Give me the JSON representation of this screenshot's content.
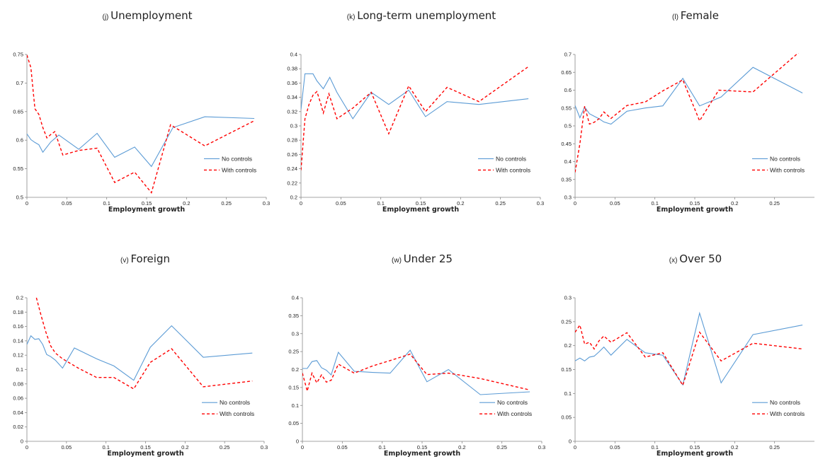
{
  "colors": {
    "no_controls": "#5b9bd5",
    "with_controls": "#ff0000",
    "axis": "#888888"
  },
  "chart_data": [
    {
      "type": "line",
      "panel": "(j)",
      "title": "Unemployment",
      "xlabel": "Employment growth",
      "ylabel": "",
      "xlim": [
        0,
        0.3
      ],
      "ylim": [
        0.5,
        0.75
      ],
      "xticks": [
        0,
        0.05,
        0.1,
        0.15,
        0.2,
        0.25,
        0.3
      ],
      "xtick_labels": [
        "0",
        "0.05",
        "0.1",
        "0.15",
        "0.2",
        "0.25",
        "0.3"
      ],
      "yticks": [
        0.5,
        0.55,
        0.6,
        0.65,
        0.7,
        0.75
      ],
      "ytick_labels": [
        "0.5",
        "0.55",
        "0.6",
        "0.65",
        "0.7",
        "0.75"
      ],
      "legend_placement": "right",
      "series": [
        {
          "name": "No controls",
          "x": [
            0,
            0.005,
            0.01,
            0.015,
            0.02,
            0.03,
            0.04,
            0.065,
            0.088,
            0.11,
            0.135,
            0.156,
            0.183,
            0.223,
            0.285
          ],
          "y": [
            0.611,
            0.601,
            0.596,
            0.592,
            0.579,
            0.597,
            0.609,
            0.584,
            0.612,
            0.57,
            0.588,
            0.554,
            0.622,
            0.641,
            0.638
          ]
        },
        {
          "name": "With controls",
          "x": [
            0,
            0.005,
            0.01,
            0.015,
            0.02,
            0.025,
            0.03,
            0.035,
            0.045,
            0.065,
            0.088,
            0.11,
            0.135,
            0.156,
            0.18,
            0.223,
            0.285
          ],
          "y": [
            0.749,
            0.727,
            0.655,
            0.645,
            0.622,
            0.604,
            0.61,
            0.615,
            0.574,
            0.582,
            0.586,
            0.526,
            0.544,
            0.508,
            0.627,
            0.59,
            0.634
          ]
        }
      ]
    },
    {
      "type": "line",
      "panel": "(k)",
      "title": "Long-term unemployment",
      "xlabel": "Employment growth",
      "ylabel": "",
      "xlim": [
        0,
        0.3
      ],
      "ylim": [
        0.2,
        0.4
      ],
      "xticks": [
        0,
        0.05,
        0.1,
        0.15,
        0.2,
        0.25,
        0.3
      ],
      "xtick_labels": [
        "0",
        "0.05",
        "0.1",
        "0.15",
        "0.2",
        "0.25",
        "0.3"
      ],
      "yticks": [
        0.2,
        0.22,
        0.24,
        0.26,
        0.28,
        0.3,
        0.32,
        0.34,
        0.36,
        0.38,
        0.4
      ],
      "ytick_labels": [
        "0.2",
        "0.22",
        "0.24",
        "0.26",
        "0.28",
        "0.3",
        "0.32",
        "0.34",
        "0.36",
        "0.38",
        "0.4"
      ],
      "legend_placement": "right",
      "series": [
        {
          "name": "No controls",
          "x": [
            0,
            0.005,
            0.01,
            0.015,
            0.02,
            0.028,
            0.036,
            0.045,
            0.065,
            0.088,
            0.11,
            0.135,
            0.156,
            0.183,
            0.223,
            0.285
          ],
          "y": [
            0.323,
            0.373,
            0.373,
            0.373,
            0.363,
            0.352,
            0.368,
            0.347,
            0.31,
            0.347,
            0.33,
            0.35,
            0.313,
            0.334,
            0.33,
            0.338
          ]
        },
        {
          "name": "With controls",
          "x": [
            0,
            0.005,
            0.01,
            0.015,
            0.02,
            0.025,
            0.028,
            0.035,
            0.045,
            0.065,
            0.088,
            0.11,
            0.135,
            0.156,
            0.183,
            0.223,
            0.285
          ],
          "y": [
            0.238,
            0.31,
            0.33,
            0.343,
            0.348,
            0.33,
            0.318,
            0.345,
            0.31,
            0.325,
            0.347,
            0.289,
            0.356,
            0.32,
            0.354,
            0.334,
            0.383
          ]
        }
      ]
    },
    {
      "type": "line",
      "panel": "(l)",
      "title": "Female",
      "xlabel": "Employment growth",
      "ylabel": "",
      "xlim": [
        0,
        0.3
      ],
      "ylim": [
        0.3,
        0.7
      ],
      "xticks": [
        0,
        0.05,
        0.1,
        0.15,
        0.2,
        0.25
      ],
      "xtick_labels": [
        "0",
        "0.05",
        "0.1",
        "0.15",
        "0.2",
        "0.25"
      ],
      "yticks": [
        0.3,
        0.35,
        0.4,
        0.45,
        0.5,
        0.55,
        0.6,
        0.65,
        0.7
      ],
      "ytick_labels": [
        "0.3",
        "0.35",
        "0.4",
        "0.45",
        "0.5",
        "0.55",
        "0.6",
        "0.65",
        "0.7"
      ],
      "legend_placement": "right",
      "series": [
        {
          "name": "No controls",
          "x": [
            0,
            0.006,
            0.012,
            0.018,
            0.024,
            0.03,
            0.036,
            0.045,
            0.065,
            0.088,
            0.11,
            0.135,
            0.156,
            0.183,
            0.223,
            0.285
          ],
          "y": [
            0.557,
            0.523,
            0.553,
            0.534,
            0.527,
            0.52,
            0.511,
            0.505,
            0.541,
            0.55,
            0.556,
            0.633,
            0.556,
            0.581,
            0.664,
            0.592
          ]
        },
        {
          "name": "With controls",
          "x": [
            0,
            0.006,
            0.012,
            0.018,
            0.024,
            0.03,
            0.036,
            0.045,
            0.065,
            0.088,
            0.11,
            0.135,
            0.156,
            0.18,
            0.223,
            0.28
          ],
          "y": [
            0.37,
            0.45,
            0.555,
            0.505,
            0.51,
            0.52,
            0.539,
            0.521,
            0.557,
            0.567,
            0.598,
            0.629,
            0.514,
            0.6,
            0.595,
            0.705
          ]
        }
      ]
    },
    {
      "type": "line",
      "panel": "(v)",
      "title": "Foreign",
      "xlabel": "Employment growth",
      "ylabel": "",
      "xlim": [
        0,
        0.3
      ],
      "ylim": [
        0,
        0.2
      ],
      "xticks": [
        0,
        0.05,
        0.1,
        0.15,
        0.2,
        0.25,
        0.3
      ],
      "xtick_labels": [
        "0",
        "0.05",
        "0.1",
        "0.15",
        "0.2",
        "0.25",
        "0.3"
      ],
      "yticks": [
        0,
        0.02,
        0.04,
        0.06,
        0.08,
        0.1,
        0.12,
        0.14,
        0.16,
        0.18,
        0.2
      ],
      "ytick_labels": [
        "0",
        "0.02",
        "0.04",
        "0.06",
        "0.08",
        "0.1",
        "0.12",
        "0.14",
        "0.16",
        "0.18",
        "0.2"
      ],
      "legend_placement": "right",
      "series": [
        {
          "name": "No controls",
          "x": [
            0,
            0.005,
            0.01,
            0.015,
            0.02,
            0.025,
            0.03,
            0.036,
            0.045,
            0.06,
            0.088,
            0.11,
            0.135,
            0.156,
            0.183,
            0.223,
            0.285
          ],
          "y": [
            0.135,
            0.147,
            0.142,
            0.143,
            0.135,
            0.121,
            0.118,
            0.113,
            0.102,
            0.13,
            0.115,
            0.105,
            0.085,
            0.131,
            0.161,
            0.117,
            0.123
          ]
        },
        {
          "name": "With controls",
          "x": [
            0.012,
            0.018,
            0.024,
            0.03,
            0.036,
            0.045,
            0.065,
            0.088,
            0.11,
            0.135,
            0.156,
            0.183,
            0.223,
            0.285
          ],
          "y": [
            0.2,
            0.175,
            0.152,
            0.133,
            0.123,
            0.115,
            0.102,
            0.089,
            0.089,
            0.073,
            0.11,
            0.129,
            0.076,
            0.084
          ]
        }
      ]
    },
    {
      "type": "line",
      "panel": "(w)",
      "title": "Under 25",
      "xlabel": "Employment growth",
      "ylabel": "",
      "xlim": [
        0,
        0.3
      ],
      "ylim": [
        0,
        0.4
      ],
      "xticks": [
        0,
        0.05,
        0.1,
        0.15,
        0.2,
        0.25,
        0.3
      ],
      "xtick_labels": [
        "0",
        "0.05",
        "0.1",
        "0.15",
        "0.2",
        "0.25",
        "0.3"
      ],
      "yticks": [
        0,
        0.05,
        0.1,
        0.15,
        0.2,
        0.25,
        0.3,
        0.35,
        0.4
      ],
      "ytick_labels": [
        "0",
        "0.05",
        "0.1",
        "0.15",
        "0.2",
        "0.25",
        "0.3",
        "0.35",
        "0.4"
      ],
      "legend_placement": "right",
      "series": [
        {
          "name": "No controls",
          "x": [
            0,
            0.006,
            0.012,
            0.018,
            0.024,
            0.03,
            0.036,
            0.045,
            0.065,
            0.088,
            0.11,
            0.135,
            0.156,
            0.183,
            0.223,
            0.285
          ],
          "y": [
            0.203,
            0.203,
            0.222,
            0.225,
            0.205,
            0.198,
            0.185,
            0.248,
            0.195,
            0.192,
            0.19,
            0.254,
            0.166,
            0.2,
            0.13,
            0.138
          ]
        },
        {
          "name": "With controls",
          "x": [
            0,
            0.006,
            0.012,
            0.018,
            0.024,
            0.03,
            0.036,
            0.045,
            0.065,
            0.088,
            0.11,
            0.135,
            0.156,
            0.183,
            0.223,
            0.285
          ],
          "y": [
            0.19,
            0.14,
            0.19,
            0.163,
            0.185,
            0.165,
            0.17,
            0.215,
            0.19,
            0.21,
            0.225,
            0.243,
            0.186,
            0.19,
            0.175,
            0.143
          ]
        }
      ]
    },
    {
      "type": "line",
      "panel": "(x)",
      "title": "Over 50",
      "xlabel": "Employment growth",
      "ylabel": "",
      "xlim": [
        0,
        0.3
      ],
      "ylim": [
        0,
        0.3
      ],
      "xticks": [
        0,
        0.05,
        0.1,
        0.15,
        0.2,
        0.25
      ],
      "xtick_labels": [
        "0",
        "0.05",
        "0.1",
        "0.15",
        "0.2",
        "0.25"
      ],
      "yticks": [
        0,
        0.05,
        0.1,
        0.15,
        0.2,
        0.25,
        0.3
      ],
      "ytick_labels": [
        "0",
        "0.05",
        "0.1",
        "0.15",
        "0.2",
        "0.25",
        "0.3"
      ],
      "legend_placement": "right",
      "series": [
        {
          "name": "No controls",
          "x": [
            0,
            0.006,
            0.012,
            0.018,
            0.024,
            0.03,
            0.036,
            0.045,
            0.065,
            0.088,
            0.11,
            0.135,
            0.156,
            0.183,
            0.223,
            0.285
          ],
          "y": [
            0.168,
            0.174,
            0.168,
            0.176,
            0.178,
            0.187,
            0.197,
            0.18,
            0.213,
            0.185,
            0.18,
            0.118,
            0.268,
            0.122,
            0.223,
            0.243
          ]
        },
        {
          "name": "With controls",
          "x": [
            0,
            0.006,
            0.012,
            0.018,
            0.024,
            0.03,
            0.036,
            0.045,
            0.065,
            0.088,
            0.11,
            0.135,
            0.156,
            0.183,
            0.223,
            0.285
          ],
          "y": [
            0.228,
            0.243,
            0.203,
            0.207,
            0.193,
            0.21,
            0.22,
            0.207,
            0.227,
            0.176,
            0.185,
            0.117,
            0.228,
            0.168,
            0.205,
            0.193
          ]
        }
      ]
    }
  ]
}
